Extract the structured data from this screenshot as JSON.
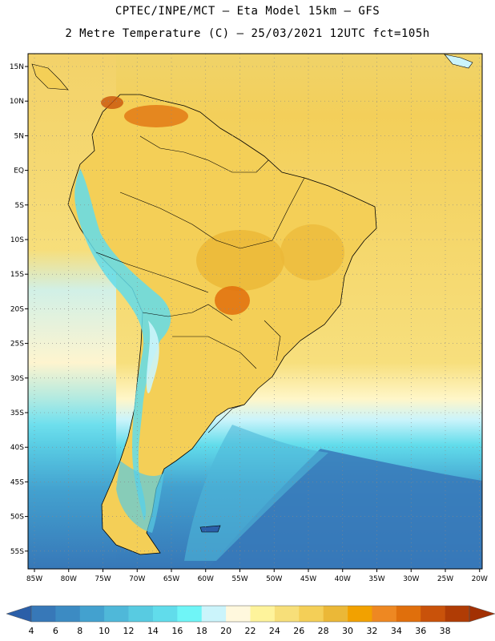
{
  "header": {
    "line1": "CPTEC/INPE/MCT –  Eta Model 15km – GFS",
    "line2": "2 Metre Temperature (C) – 25/03/2021 12UTC fct=105h"
  },
  "map": {
    "lon_ticks": [
      "85W",
      "80W",
      "75W",
      "70W",
      "65W",
      "60W",
      "55W",
      "50W",
      "45W",
      "40W",
      "35W",
      "30W",
      "25W",
      "20W"
    ],
    "lat_ticks": [
      "15N",
      "10N",
      "5N",
      "EQ",
      "5S",
      "10S",
      "15S",
      "20S",
      "25S",
      "30S",
      "35S",
      "40S",
      "45S",
      "50S",
      "55S"
    ],
    "land_color": "#f5c657",
    "ocean_warm_color": "#f3d365"
  },
  "colorbar": {
    "labels": [
      "4",
      "6",
      "8",
      "10",
      "12",
      "14",
      "16",
      "18",
      "20",
      "22",
      "24",
      "26",
      "28",
      "30",
      "32",
      "34",
      "36",
      "38"
    ],
    "colors": [
      "#3778b8",
      "#3c8bc3",
      "#43a1cf",
      "#4fb8d9",
      "#58cbe1",
      "#61dceb",
      "#6ff5f7",
      "#cbf4fb",
      "#fff8dd",
      "#fef39b",
      "#f7df79",
      "#f4cf57",
      "#ebb837",
      "#f2a100",
      "#ee8822",
      "#e06f0c",
      "#c9520a",
      "#b03c05"
    ],
    "low_arrow_color": "#2b5fa8",
    "high_arrow_color": "#a23003"
  }
}
